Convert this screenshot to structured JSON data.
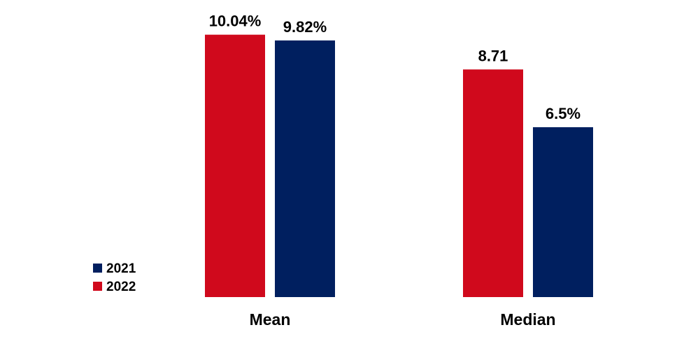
{
  "chart_data": {
    "type": "bar",
    "title": "",
    "xlabel": "",
    "ylabel": "",
    "categories": [
      "Mean",
      "Median"
    ],
    "series": [
      {
        "name": "2022",
        "color": "#d0091c",
        "values": [
          10.04,
          8.71
        ],
        "labels": [
          "10.04%",
          "8.71"
        ]
      },
      {
        "name": "2021",
        "color": "#001f5f",
        "values": [
          9.82,
          6.5
        ],
        "labels": [
          "9.82%",
          "6.5%"
        ]
      }
    ],
    "ylim": [
      0,
      11.1
    ],
    "grid": false,
    "legend": {
      "position": "bottom-left",
      "order": [
        "2021",
        "2022"
      ]
    }
  }
}
